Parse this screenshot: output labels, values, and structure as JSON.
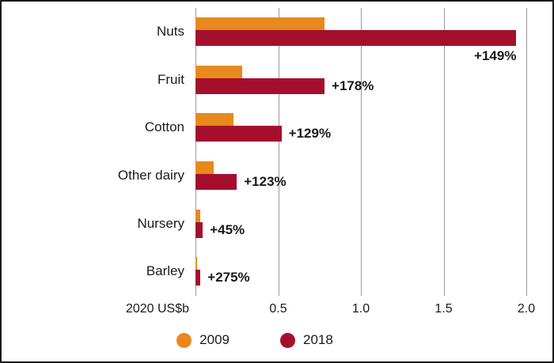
{
  "chart_data": {
    "type": "bar",
    "orientation": "horizontal",
    "title": "",
    "xlabel": "2020 US$b",
    "ylabel": "",
    "xlim": [
      0,
      2.0
    ],
    "grid": true,
    "gridlines": [
      0,
      0.5,
      1.0,
      1.5,
      2.0
    ],
    "xticks": [
      {
        "value": 0.5,
        "label": "0.5"
      },
      {
        "value": 1.0,
        "label": "1.0"
      },
      {
        "value": 1.5,
        "label": "1.5"
      },
      {
        "value": 2.0,
        "label": "2.0"
      }
    ],
    "categories": [
      "Nuts",
      "Fruit",
      "Cotton",
      "Other dairy",
      "Nursery",
      "Barley"
    ],
    "series": [
      {
        "name": "2009",
        "color": "#e8891d",
        "values": [
          0.78,
          0.28,
          0.23,
          0.11,
          0.03,
          0.008
        ]
      },
      {
        "name": "2018",
        "color": "#a50f2e",
        "values": [
          1.94,
          0.78,
          0.52,
          0.25,
          0.044,
          0.03
        ]
      }
    ],
    "growth_labels": [
      "+149%",
      "+178%",
      "+129%",
      "+123%",
      "+45%",
      "+275%"
    ],
    "growth_label_position": [
      "below",
      "right",
      "right",
      "right",
      "right",
      "right"
    ],
    "legend_position": "bottom"
  }
}
